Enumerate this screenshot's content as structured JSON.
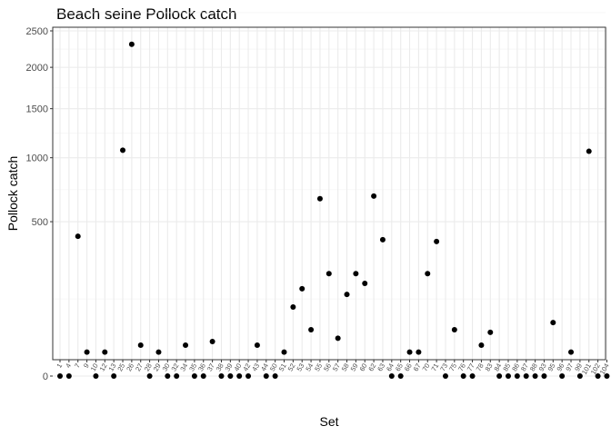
{
  "chart_data": {
    "type": "scatter",
    "title": "Beach seine Pollock catch",
    "xlabel": "Set",
    "ylabel": "Pollock catch",
    "y_scale": "sqrt",
    "y_ticks": [
      0,
      500,
      1000,
      1500,
      2000,
      2500
    ],
    "ylim": [
      0,
      2600
    ],
    "grid": true,
    "legend": "none",
    "point_color": "#000000",
    "categories": [
      "1",
      "4",
      "7",
      "9",
      "10",
      "12",
      "13",
      "25",
      "26",
      "27",
      "28",
      "29",
      "30",
      "32",
      "34",
      "35",
      "36",
      "37",
      "38",
      "39",
      "40",
      "42",
      "43",
      "44",
      "50",
      "51",
      "52",
      "53",
      "54",
      "55",
      "56",
      "57",
      "58",
      "59",
      "60",
      "62",
      "63",
      "64",
      "65",
      "66",
      "67",
      "70",
      "71",
      "73",
      "75",
      "76",
      "77",
      "78",
      "83",
      "84",
      "85",
      "86",
      "87",
      "88",
      "93",
      "95",
      "96",
      "97",
      "99",
      "101",
      "102",
      "104"
    ],
    "values": [
      0,
      0,
      410,
      12,
      0,
      12,
      0,
      1070,
      2310,
      20,
      0,
      12,
      0,
      0,
      20,
      0,
      0,
      25,
      0,
      0,
      0,
      0,
      20,
      0,
      0,
      12,
      100,
      160,
      45,
      660,
      220,
      30,
      140,
      220,
      180,
      680,
      390,
      0,
      0,
      12,
      12,
      220,
      380,
      0,
      45,
      0,
      0,
      20,
      40,
      0,
      0,
      0,
      0,
      0,
      0,
      60,
      0,
      12,
      0,
      1060,
      0,
      0
    ]
  }
}
